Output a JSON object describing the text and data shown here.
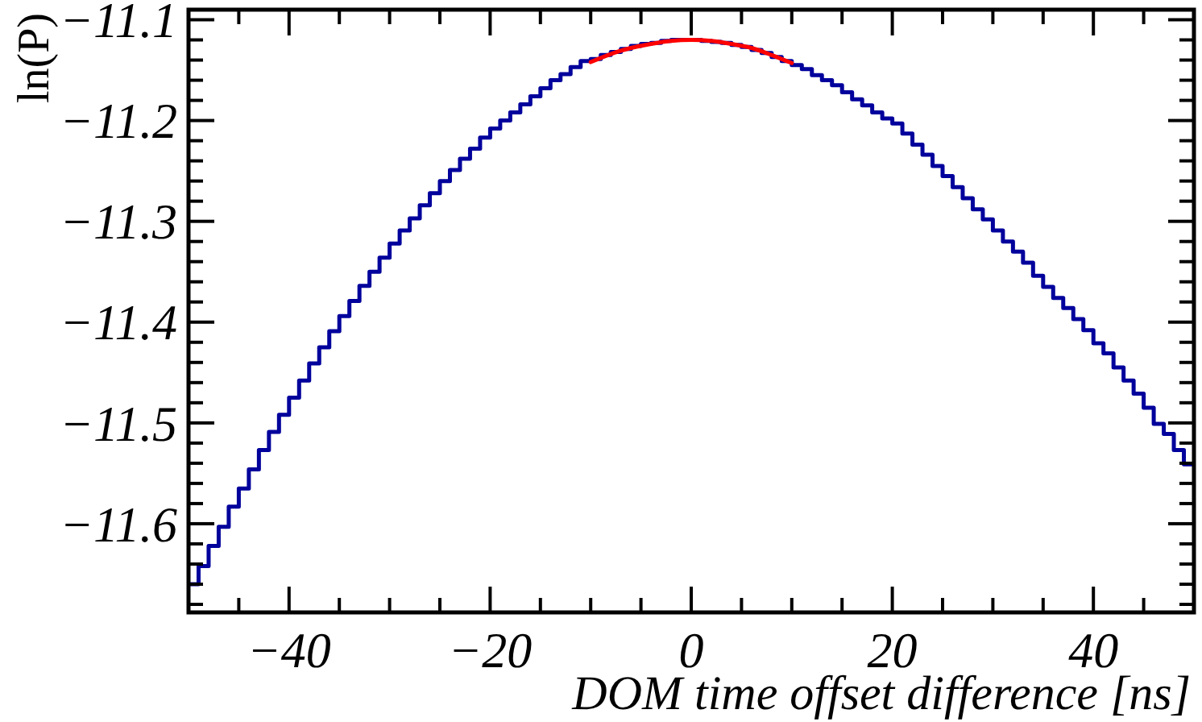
{
  "chart_data": {
    "type": "histogram",
    "xlabel": "DOM time offset difference  [ns]",
    "ylabel": "ln(P)",
    "bins": [
      -50,
      -49,
      -48,
      -47,
      -46,
      -45,
      -44,
      -43,
      -42,
      -41,
      -40,
      -39,
      -38,
      -37,
      -36,
      -35,
      -34,
      -33,
      -32,
      -31,
      -30,
      -29,
      -28,
      -27,
      -26,
      -25,
      -24,
      -23,
      -22,
      -21,
      -20,
      -19,
      -18,
      -17,
      -16,
      -15,
      -14,
      -13,
      -12,
      -11,
      -10,
      -9,
      -8,
      -7,
      -6,
      -5,
      -4,
      -3,
      -2,
      -1,
      0,
      1,
      2,
      3,
      4,
      5,
      6,
      7,
      8,
      9,
      10,
      11,
      12,
      13,
      14,
      15,
      16,
      17,
      18,
      19,
      20,
      21,
      22,
      23,
      24,
      25,
      26,
      27,
      28,
      29,
      30,
      31,
      32,
      33,
      34,
      35,
      36,
      37,
      38,
      39,
      40,
      41,
      42,
      43,
      44,
      45,
      46,
      47,
      48,
      49,
      50
    ],
    "series": [
      {
        "color": "#00009c",
        "values": [
          -11.66,
          -11.642,
          -11.622,
          -11.603,
          -11.583,
          -11.565,
          -11.546,
          -11.527,
          -11.509,
          -11.492,
          -11.475,
          -11.458,
          -11.441,
          -11.425,
          -11.409,
          -11.394,
          -11.379,
          -11.364,
          -11.35,
          -11.336,
          -11.322,
          -11.309,
          -11.297,
          -11.284,
          -11.272,
          -11.26,
          -11.249,
          -11.238,
          -11.228,
          -11.217,
          -11.208,
          -11.2,
          -11.192,
          -11.184,
          -11.176,
          -11.168,
          -11.16,
          -11.154,
          -11.147,
          -11.141,
          -11.139,
          -11.135,
          -11.132,
          -11.129,
          -11.126,
          -11.124,
          -11.123,
          -11.121,
          -11.12,
          -11.12,
          -11.12,
          -11.121,
          -11.122,
          -11.123,
          -11.125,
          -11.127,
          -11.13,
          -11.133,
          -11.137,
          -11.141,
          -11.145,
          -11.149,
          -11.155,
          -11.16,
          -11.165,
          -11.172,
          -11.179,
          -11.185,
          -11.192,
          -11.198,
          -11.203,
          -11.213,
          -11.224,
          -11.234,
          -11.245,
          -11.255,
          -11.266,
          -11.277,
          -11.288,
          -11.298,
          -11.309,
          -11.32,
          -11.33,
          -11.341,
          -11.354,
          -11.365,
          -11.376,
          -11.386,
          -11.397,
          -11.408,
          -11.421,
          -11.431,
          -11.445,
          -11.458,
          -11.471,
          -11.485,
          -11.501,
          -11.511,
          -11.527,
          -11.541
        ]
      },
      {
        "type": "line",
        "color": "#ff0000",
        "x": [
          -10,
          -8,
          -6,
          -4,
          -2,
          0,
          2,
          4,
          6,
          8,
          10
        ],
        "values": [
          -11.142,
          -11.134,
          -11.128,
          -11.124,
          -11.121,
          -11.12,
          -11.121,
          -11.124,
          -11.128,
          -11.135,
          -11.143
        ]
      }
    ],
    "xlim": [
      -50,
      50
    ],
    "xticks": [
      {
        "value": -50,
        "label": null
      },
      {
        "value": -45,
        "label": null
      },
      -40,
      {
        "value": -35,
        "label": null
      },
      {
        "value": -30,
        "label": null
      },
      {
        "value": -25,
        "label": null
      },
      -20,
      {
        "value": -15,
        "label": null
      },
      {
        "value": -10,
        "label": null
      },
      {
        "value": -5,
        "label": null
      },
      0,
      {
        "value": 5,
        "label": null
      },
      {
        "value": 10,
        "label": null
      },
      {
        "value": 15,
        "label": null
      },
      20,
      {
        "value": 25,
        "label": null
      },
      {
        "value": 30,
        "label": null
      },
      {
        "value": 35,
        "label": null
      },
      40,
      {
        "value": 45,
        "label": null
      },
      {
        "value": 50,
        "label": null
      }
    ],
    "ylim": [
      -11.688,
      -11.09
    ],
    "yticks": [
      {
        "value": -11.68,
        "label": null
      },
      {
        "value": -11.66,
        "label": null
      },
      {
        "value": -11.64,
        "label": null
      },
      {
        "value": -11.62,
        "label": null
      },
      -11.6,
      {
        "value": -11.58,
        "label": null
      },
      {
        "value": -11.56,
        "label": null
      },
      {
        "value": -11.54,
        "label": null
      },
      {
        "value": -11.52,
        "label": null
      },
      -11.5,
      {
        "value": -11.48,
        "label": null
      },
      {
        "value": -11.46,
        "label": null
      },
      {
        "value": -11.44,
        "label": null
      },
      {
        "value": -11.42,
        "label": null
      },
      -11.4,
      {
        "value": -11.38,
        "label": null
      },
      {
        "value": -11.36,
        "label": null
      },
      {
        "value": -11.34,
        "label": null
      },
      {
        "value": -11.32,
        "label": null
      },
      -11.3,
      {
        "value": -11.28,
        "label": null
      },
      {
        "value": -11.26,
        "label": null
      },
      {
        "value": -11.24,
        "label": null
      },
      {
        "value": -11.22,
        "label": null
      },
      -11.2,
      {
        "value": -11.18,
        "label": null
      },
      {
        "value": -11.16,
        "label": null
      },
      {
        "value": -11.14,
        "label": null
      },
      {
        "value": -11.12,
        "label": null
      },
      -11.1
    ]
  }
}
